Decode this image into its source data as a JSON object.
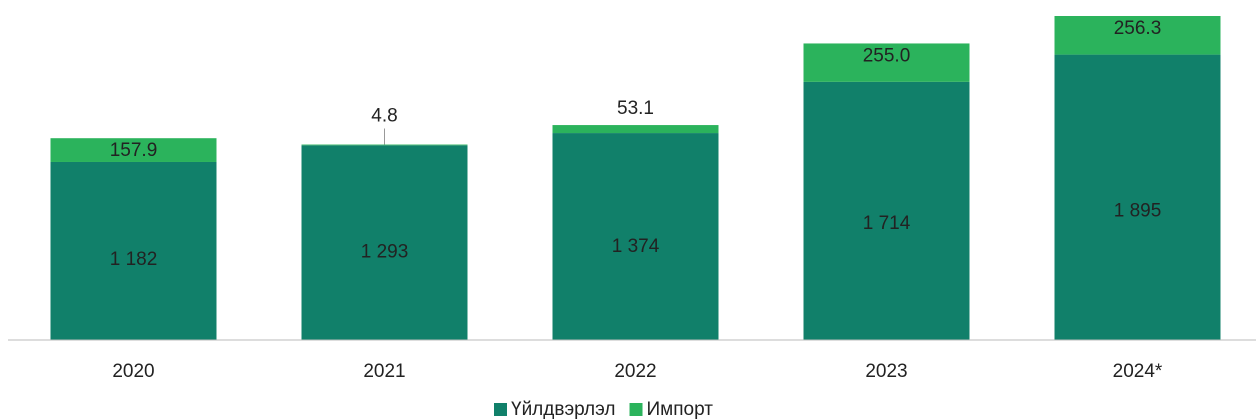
{
  "chart_data": {
    "type": "stacked_bar",
    "categories": [
      "2020",
      "2021",
      "2022",
      "2023",
      "2024*"
    ],
    "series": [
      {
        "name": "Үйлдвэрлэл",
        "color": "#11806a",
        "values": [
          1182,
          1293,
          1374,
          1714,
          1895
        ],
        "value_labels": [
          "1 182",
          "1 293",
          "1 374",
          "1 714",
          "1 895"
        ]
      },
      {
        "name": "Импорт",
        "color": "#2bb35c",
        "values": [
          157.9,
          4.8,
          53.1,
          255.0,
          256.3
        ],
        "value_labels": [
          "157.9",
          "4.8",
          "53.1",
          "255.0",
          "256.3"
        ]
      }
    ],
    "legend": "bottom"
  }
}
